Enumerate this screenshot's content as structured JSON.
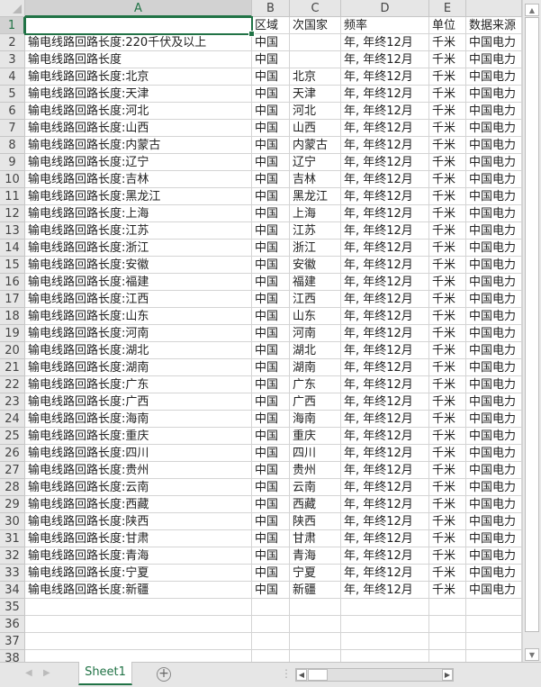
{
  "columns": [
    "A",
    "B",
    "C",
    "D",
    "E",
    ""
  ],
  "header_row": {
    "num": "1",
    "cells": [
      "",
      "区域",
      "次国家",
      "频率",
      "单位",
      "数据来源"
    ]
  },
  "rows": [
    [
      "输电线路回路长度:220千伏及以上",
      "中国",
      "",
      "年, 年终12月",
      "千米",
      "中国电力"
    ],
    [
      "输电线路回路长度",
      "中国",
      "",
      "年, 年终12月",
      "千米",
      "中国电力"
    ],
    [
      "输电线路回路长度:北京",
      "中国",
      "北京",
      "年, 年终12月",
      "千米",
      "中国电力"
    ],
    [
      "输电线路回路长度:天津",
      "中国",
      "天津",
      "年, 年终12月",
      "千米",
      "中国电力"
    ],
    [
      "输电线路回路长度:河北",
      "中国",
      "河北",
      "年, 年终12月",
      "千米",
      "中国电力"
    ],
    [
      "输电线路回路长度:山西",
      "中国",
      "山西",
      "年, 年终12月",
      "千米",
      "中国电力"
    ],
    [
      "输电线路回路长度:内蒙古",
      "中国",
      "内蒙古",
      "年, 年终12月",
      "千米",
      "中国电力"
    ],
    [
      "输电线路回路长度:辽宁",
      "中国",
      "辽宁",
      "年, 年终12月",
      "千米",
      "中国电力"
    ],
    [
      "输电线路回路长度:吉林",
      "中国",
      "吉林",
      "年, 年终12月",
      "千米",
      "中国电力"
    ],
    [
      "输电线路回路长度:黑龙江",
      "中国",
      "黑龙江",
      "年, 年终12月",
      "千米",
      "中国电力"
    ],
    [
      "输电线路回路长度:上海",
      "中国",
      "上海",
      "年, 年终12月",
      "千米",
      "中国电力"
    ],
    [
      "输电线路回路长度:江苏",
      "中国",
      "江苏",
      "年, 年终12月",
      "千米",
      "中国电力"
    ],
    [
      "输电线路回路长度:浙江",
      "中国",
      "浙江",
      "年, 年终12月",
      "千米",
      "中国电力"
    ],
    [
      "输电线路回路长度:安徽",
      "中国",
      "安徽",
      "年, 年终12月",
      "千米",
      "中国电力"
    ],
    [
      "输电线路回路长度:福建",
      "中国",
      "福建",
      "年, 年终12月",
      "千米",
      "中国电力"
    ],
    [
      "输电线路回路长度:江西",
      "中国",
      "江西",
      "年, 年终12月",
      "千米",
      "中国电力"
    ],
    [
      "输电线路回路长度:山东",
      "中国",
      "山东",
      "年, 年终12月",
      "千米",
      "中国电力"
    ],
    [
      "输电线路回路长度:河南",
      "中国",
      "河南",
      "年, 年终12月",
      "千米",
      "中国电力"
    ],
    [
      "输电线路回路长度:湖北",
      "中国",
      "湖北",
      "年, 年终12月",
      "千米",
      "中国电力"
    ],
    [
      "输电线路回路长度:湖南",
      "中国",
      "湖南",
      "年, 年终12月",
      "千米",
      "中国电力"
    ],
    [
      "输电线路回路长度:广东",
      "中国",
      "广东",
      "年, 年终12月",
      "千米",
      "中国电力"
    ],
    [
      "输电线路回路长度:广西",
      "中国",
      "广西",
      "年, 年终12月",
      "千米",
      "中国电力"
    ],
    [
      "输电线路回路长度:海南",
      "中国",
      "海南",
      "年, 年终12月",
      "千米",
      "中国电力"
    ],
    [
      "输电线路回路长度:重庆",
      "中国",
      "重庆",
      "年, 年终12月",
      "千米",
      "中国电力"
    ],
    [
      "输电线路回路长度:四川",
      "中国",
      "四川",
      "年, 年终12月",
      "千米",
      "中国电力"
    ],
    [
      "输电线路回路长度:贵州",
      "中国",
      "贵州",
      "年, 年终12月",
      "千米",
      "中国电力"
    ],
    [
      "输电线路回路长度:云南",
      "中国",
      "云南",
      "年, 年终12月",
      "千米",
      "中国电力"
    ],
    [
      "输电线路回路长度:西藏",
      "中国",
      "西藏",
      "年, 年终12月",
      "千米",
      "中国电力"
    ],
    [
      "输电线路回路长度:陕西",
      "中国",
      "陕西",
      "年, 年终12月",
      "千米",
      "中国电力"
    ],
    [
      "输电线路回路长度:甘肃",
      "中国",
      "甘肃",
      "年, 年终12月",
      "千米",
      "中国电力"
    ],
    [
      "输电线路回路长度:青海",
      "中国",
      "青海",
      "年, 年终12月",
      "千米",
      "中国电力"
    ],
    [
      "输电线路回路长度:宁夏",
      "中国",
      "宁夏",
      "年, 年终12月",
      "千米",
      "中国电力"
    ],
    [
      "输电线路回路长度:新疆",
      "中国",
      "新疆",
      "年, 年终12月",
      "千米",
      "中国电力"
    ]
  ],
  "empty_rows": [
    "35",
    "36",
    "37",
    "38"
  ],
  "sheet_tabs": [
    "Sheet1"
  ],
  "active_tab": "Sheet1",
  "accent_color": "#217346"
}
